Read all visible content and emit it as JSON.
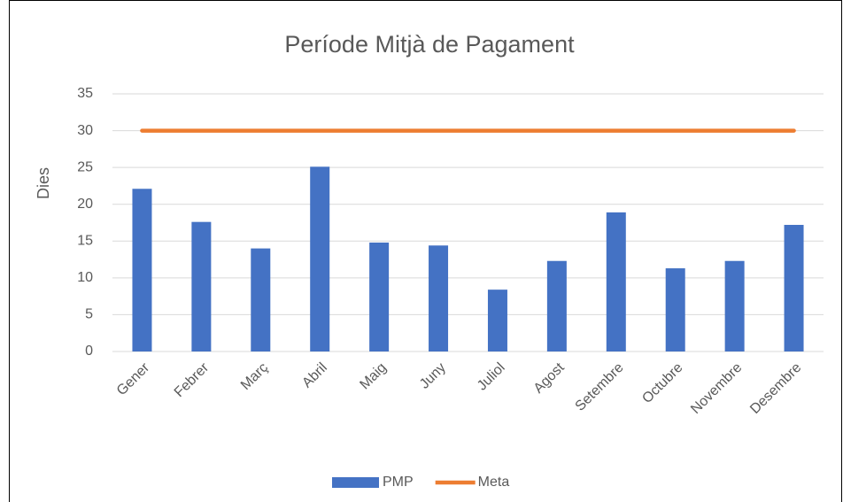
{
  "chart_data": {
    "type": "bar",
    "title": "Període Mitjà de Pagament",
    "y_label": "Dies",
    "categories": [
      "Gener",
      "Febrer",
      "Març",
      "Abril",
      "Maig",
      "Juny",
      "Juliol",
      "Agost",
      "Setembre",
      "Octubre",
      "Novembre",
      "Desembre"
    ],
    "series": [
      {
        "name": "PMP",
        "type": "bar",
        "color": "#4472c4",
        "values": [
          22.1,
          17.6,
          14.0,
          25.1,
          14.8,
          14.4,
          8.4,
          12.3,
          18.9,
          11.3,
          12.3,
          17.2
        ]
      },
      {
        "name": "Meta",
        "type": "line",
        "color": "#ed7d31",
        "values": [
          30,
          30,
          30,
          30,
          30,
          30,
          30,
          30,
          30,
          30,
          30,
          30
        ]
      }
    ],
    "ylim": [
      0,
      35
    ],
    "yticks": [
      0,
      5,
      10,
      15,
      20,
      25,
      30,
      35
    ],
    "grid": true,
    "legend": "bottom"
  }
}
